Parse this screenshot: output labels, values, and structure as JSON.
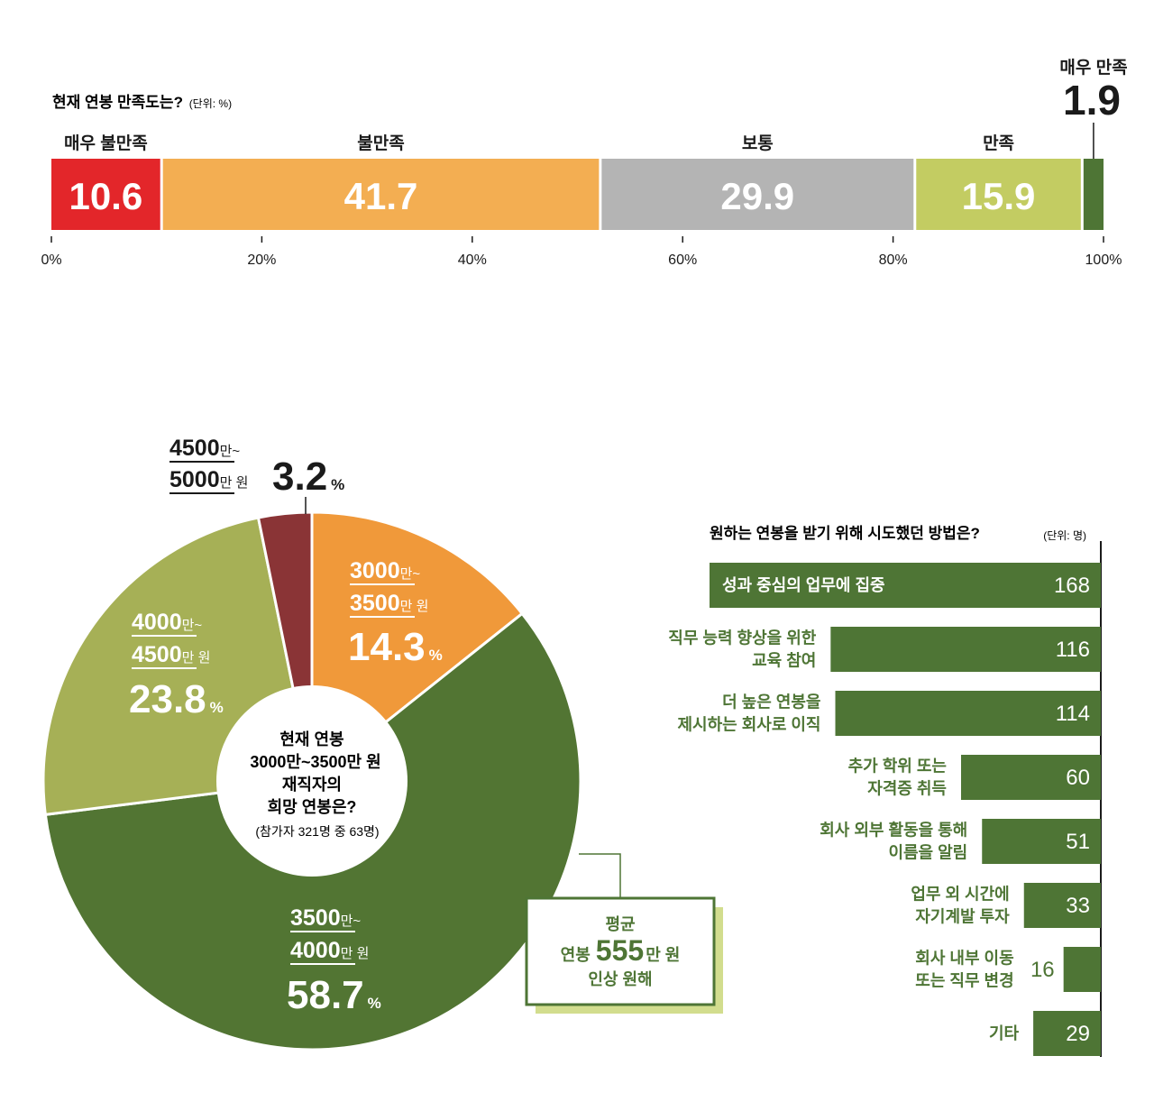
{
  "colors": {
    "very_unsatisfied": "#e3262a",
    "unsatisfied": "#f3ae52",
    "neutral": "#b4b4b4",
    "satisfied": "#c3cc62",
    "very_satisfied": "#4e7535",
    "pie_3000": "#f0993a",
    "pie_3500": "#527533",
    "pie_4000": "#a6b056",
    "pie_4500": "#8a3436",
    "bars": "#4e7535",
    "callout_shadow": "#d2dd8e"
  },
  "chart_data": [
    {
      "type": "bar",
      "subtype": "100% stacked horizontal",
      "title": "현재 연봉 만족도는?",
      "unit": "(단위: %)",
      "categories": [
        "매우 불만족",
        "불만족",
        "보통",
        "만족",
        "매우 만족"
      ],
      "values": [
        10.6,
        41.7,
        29.9,
        15.9,
        1.9
      ],
      "value_labels": [
        "10.6",
        "41.7",
        "29.9",
        "15.9",
        "1.9"
      ],
      "xlim": [
        0,
        100
      ],
      "ticks": [
        "0%",
        "20%",
        "40%",
        "60%",
        "80%",
        "100%"
      ]
    },
    {
      "type": "pie",
      "subtype": "donut",
      "center_text": [
        "현재 연봉",
        "3000만~3500만 원",
        "재직자의",
        "희망 연봉은?"
      ],
      "center_note": "(참가자 321명 중 63명)",
      "slices": [
        {
          "label_top": "3000",
          "man1": "만~",
          "label_bottom": "3500",
          "man2": "만 원",
          "value": 14.3,
          "value_text": "14.3",
          "pct": "%"
        },
        {
          "label_top": "3500",
          "man1": "만~",
          "label_bottom": "4000",
          "man2": "만 원",
          "value": 58.7,
          "value_text": "58.7",
          "pct": "%"
        },
        {
          "label_top": "4000",
          "man1": "만~",
          "label_bottom": "4500",
          "man2": "만 원",
          "value": 23.8,
          "value_text": "23.8",
          "pct": "%"
        },
        {
          "label_top": "4500",
          "man1": "만~",
          "label_bottom": "5000",
          "man2": "만 원",
          "value": 3.2,
          "value_text": "3.2",
          "pct": "%"
        }
      ],
      "callout": {
        "line1": "평균",
        "pre": "연봉",
        "big": "555",
        "post": "만 원",
        "line3": "인상 원해"
      }
    },
    {
      "type": "bar",
      "subtype": "horizontal",
      "title": "원하는 연봉을 받기 위해 시도했던 방법은?",
      "unit": "(단위: 명)",
      "items": [
        {
          "label": [
            "성과 중심의 업무에 집중"
          ],
          "value": 168
        },
        {
          "label": [
            "직무 능력 향상을 위한",
            "교육 참여"
          ],
          "value": 116
        },
        {
          "label": [
            "더 높은 연봉을",
            "제시하는 회사로 이직"
          ],
          "value": 114
        },
        {
          "label": [
            "추가 학위 또는",
            "자격증 취득"
          ],
          "value": 60
        },
        {
          "label": [
            "회사 외부 활동을 통해",
            "이름을 알림"
          ],
          "value": 51
        },
        {
          "label": [
            "업무 외 시간에",
            "자기계발 투자"
          ],
          "value": 33
        },
        {
          "label": [
            "회사 내부 이동",
            "또는 직무 변경"
          ],
          "value": 16
        },
        {
          "label": [
            "기타"
          ],
          "value": 29
        }
      ]
    }
  ]
}
